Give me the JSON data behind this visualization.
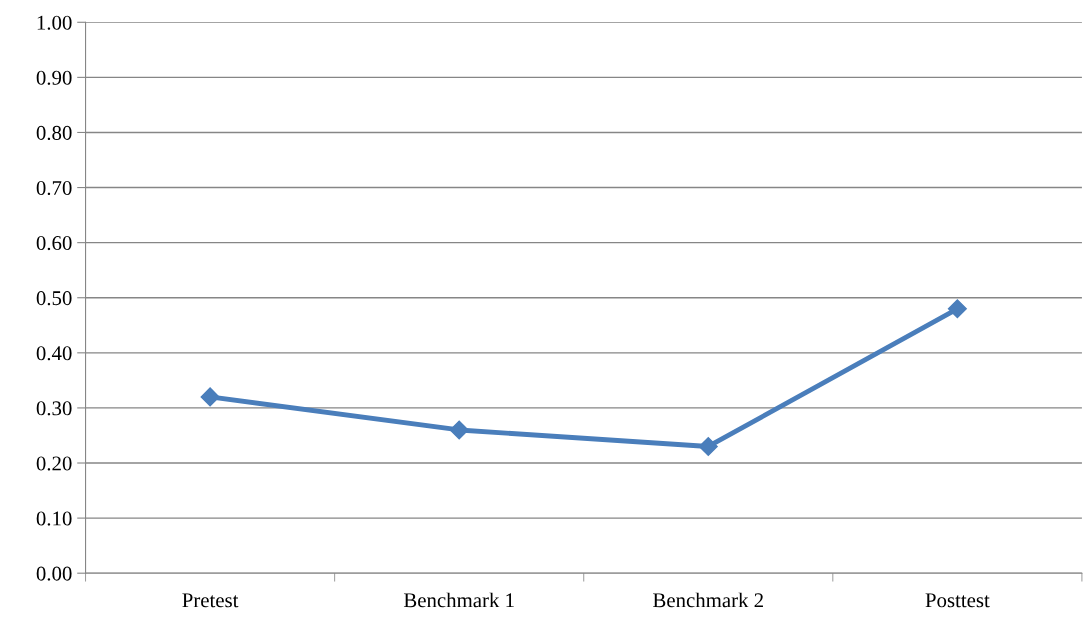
{
  "chart_data": {
    "type": "line",
    "categories": [
      "Pretest",
      "Benchmark 1",
      "Benchmark 2",
      "Posttest"
    ],
    "series": [
      {
        "color": "#4a7ebb",
        "values": [
          0.32,
          0.26,
          0.23,
          0.48
        ]
      }
    ],
    "ylim": [
      0,
      1
    ],
    "yticks": [
      {
        "value": 0,
        "label": "0.00"
      },
      {
        "value": 0.1,
        "label": "0.10"
      },
      {
        "value": 0.2,
        "label": "0.20"
      },
      {
        "value": 0.3,
        "label": "0.30"
      },
      {
        "value": 0.4,
        "label": "0.40"
      },
      {
        "value": 0.5,
        "label": "0.50"
      },
      {
        "value": 0.6,
        "label": "0.60"
      },
      {
        "value": 0.7,
        "label": "0.70"
      },
      {
        "value": 0.8,
        "label": "0.80"
      },
      {
        "value": 0.9,
        "label": "0.90"
      },
      {
        "value": 1,
        "label": "1.00"
      }
    ],
    "grid": "y",
    "marker": "diamond",
    "line_style": "solid"
  }
}
